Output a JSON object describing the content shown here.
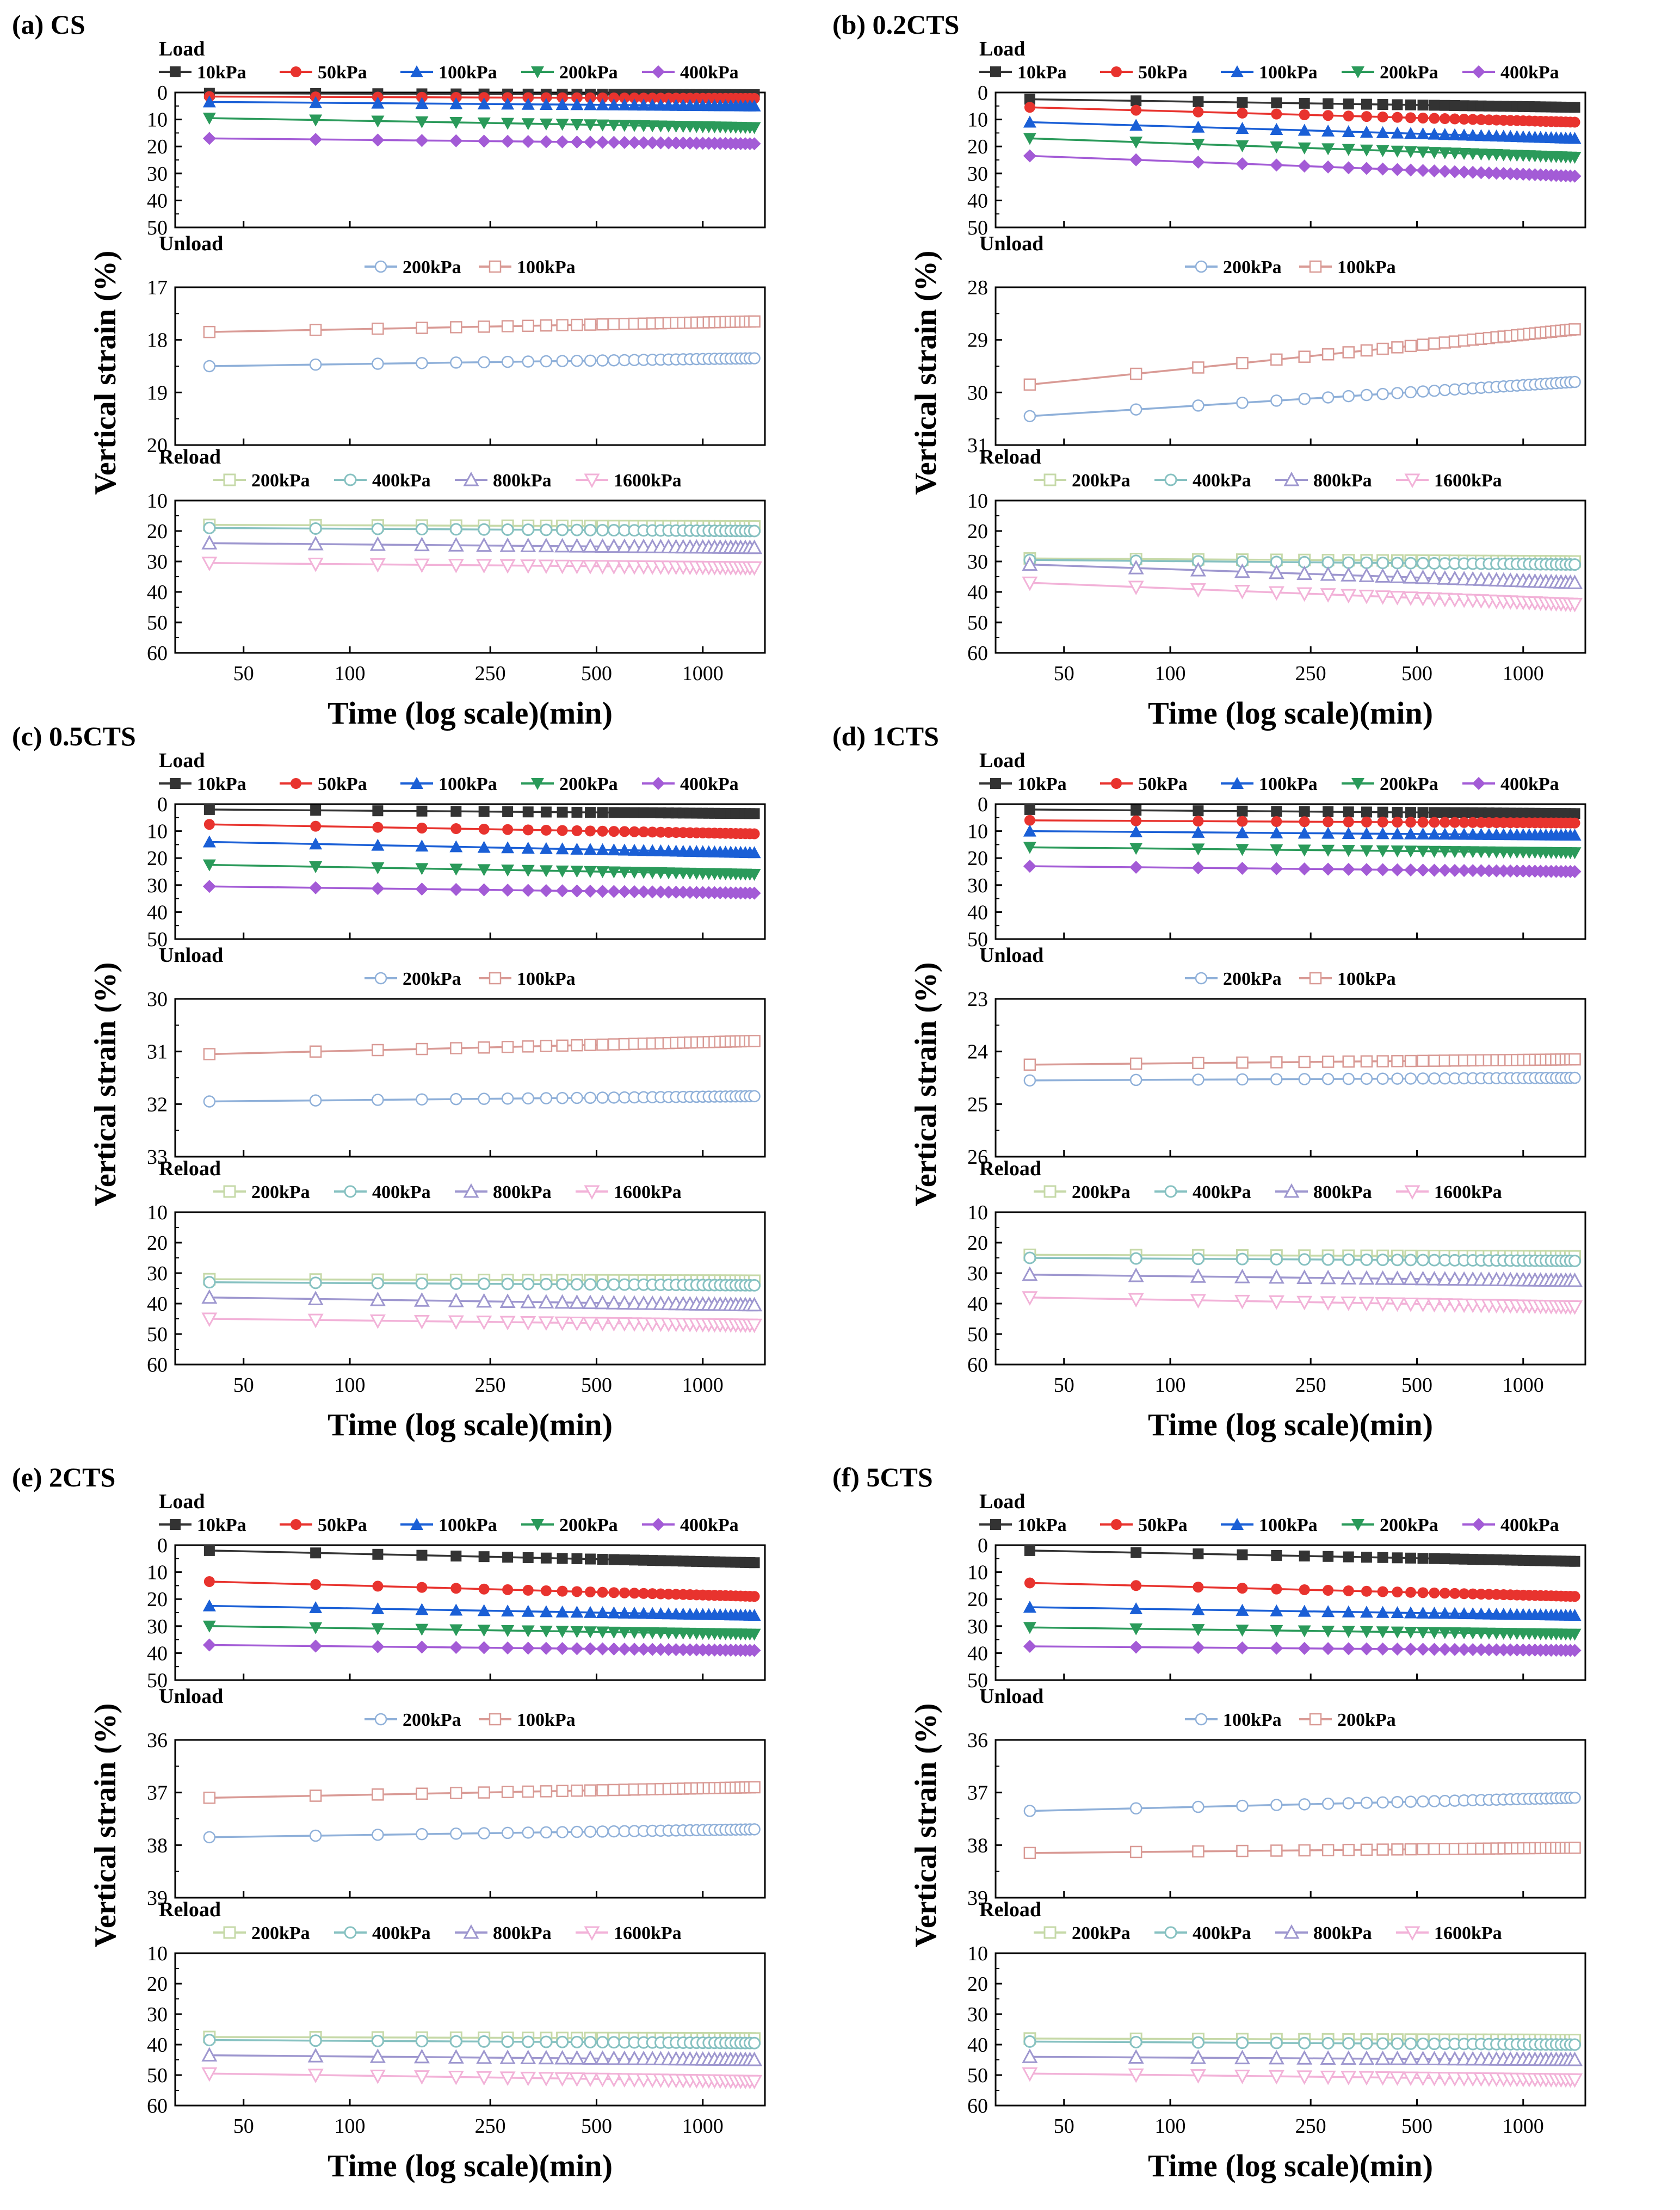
{
  "chart_data": [
    {
      "type": "line",
      "panel_label": "(a) CS",
      "ylabel": "Vertical strain (%)",
      "xlabel": "Time (log scale)(min)",
      "x_ticks": [
        50,
        100,
        250,
        500,
        1000
      ],
      "xlim": [
        32,
        1500
      ],
      "x_scale": "log",
      "subplots": [
        {
          "name": "Load",
          "ylim": [
            0,
            50
          ],
          "y_ticks": [
            0,
            10,
            20,
            30,
            40,
            50
          ],
          "series": [
            {
              "name": "10kPa",
              "color": "#333333",
              "marker": "square",
              "y_start": 0.3,
              "y_end": 0.8
            },
            {
              "name": "50kPa",
              "color": "#e8332e",
              "marker": "circle",
              "y_start": 1.5,
              "y_end": 2.2
            },
            {
              "name": "100kPa",
              "color": "#1a5fd6",
              "marker": "triangle-up",
              "y_start": 3.5,
              "y_end": 5
            },
            {
              "name": "200kPa",
              "color": "#2a9a5a",
              "marker": "triangle-down",
              "y_start": 9.5,
              "y_end": 13
            },
            {
              "name": "400kPa",
              "color": "#a35bd6",
              "marker": "diamond",
              "y_start": 17,
              "y_end": 19
            }
          ]
        },
        {
          "name": "Unload",
          "ylim": [
            17,
            20
          ],
          "y_ticks": [
            17,
            18,
            19,
            20
          ],
          "series": [
            {
              "name": "200kPa",
              "color": "#8fb0d9",
              "marker": "circle-open",
              "y_start": 18.5,
              "y_end": 18.35
            },
            {
              "name": "100kPa",
              "color": "#d99a95",
              "marker": "square-open",
              "y_start": 17.85,
              "y_end": 17.65
            }
          ]
        },
        {
          "name": "Reload",
          "ylim": [
            10,
            60
          ],
          "y_ticks": [
            10,
            20,
            30,
            40,
            50,
            60
          ],
          "series": [
            {
              "name": "200kPa",
              "color": "#c6d9a8",
              "marker": "square-half",
              "y_start": 18,
              "y_end": 18.5
            },
            {
              "name": "400kPa",
              "color": "#86c1c1",
              "marker": "circle-half",
              "y_start": 19,
              "y_end": 20
            },
            {
              "name": "800kPa",
              "color": "#9e97cf",
              "marker": "triangle-half",
              "y_start": 24,
              "y_end": 25.5
            },
            {
              "name": "1600kPa",
              "color": "#f2b2d8",
              "marker": "triangle-down-half",
              "y_start": 30.5,
              "y_end": 32
            }
          ]
        }
      ]
    },
    {
      "type": "line",
      "panel_label": "(b) 0.2CTS",
      "ylabel": "Vertical strain (%)",
      "xlabel": "Time (log scale)(min)",
      "x_ticks": [
        50,
        100,
        250,
        500,
        1000
      ],
      "xlim": [
        32,
        1500
      ],
      "x_scale": "log",
      "subplots": [
        {
          "name": "Load",
          "ylim": [
            0,
            50
          ],
          "y_ticks": [
            0,
            10,
            20,
            30,
            40,
            50
          ],
          "series": [
            {
              "name": "10kPa",
              "color": "#333333",
              "marker": "square",
              "y_start": 2.5,
              "y_end": 5.5
            },
            {
              "name": "50kPa",
              "color": "#e8332e",
              "marker": "circle",
              "y_start": 5.5,
              "y_end": 11
            },
            {
              "name": "100kPa",
              "color": "#1a5fd6",
              "marker": "triangle-up",
              "y_start": 11,
              "y_end": 17
            },
            {
              "name": "200kPa",
              "color": "#2a9a5a",
              "marker": "triangle-down",
              "y_start": 17,
              "y_end": 24
            },
            {
              "name": "400kPa",
              "color": "#a35bd6",
              "marker": "diamond",
              "y_start": 23.5,
              "y_end": 31
            }
          ]
        },
        {
          "name": "Unload",
          "ylim": [
            28,
            31
          ],
          "y_ticks": [
            28,
            29,
            30,
            31
          ],
          "series": [
            {
              "name": "200kPa",
              "color": "#8fb0d9",
              "marker": "circle-open",
              "y_start": 30.45,
              "y_end": 29.8
            },
            {
              "name": "100kPa",
              "color": "#d99a95",
              "marker": "square-open",
              "y_start": 29.85,
              "y_end": 28.8
            }
          ]
        },
        {
          "name": "Reload",
          "ylim": [
            10,
            60
          ],
          "y_ticks": [
            10,
            20,
            30,
            40,
            50,
            60
          ],
          "series": [
            {
              "name": "200kPa",
              "color": "#c6d9a8",
              "marker": "square-half",
              "y_start": 29,
              "y_end": 30
            },
            {
              "name": "400kPa",
              "color": "#86c1c1",
              "marker": "circle-half",
              "y_start": 29.5,
              "y_end": 31
            },
            {
              "name": "800kPa",
              "color": "#9e97cf",
              "marker": "triangle-half",
              "y_start": 31,
              "y_end": 37
            },
            {
              "name": "1600kPa",
              "color": "#f2b2d8",
              "marker": "triangle-down-half",
              "y_start": 37,
              "y_end": 44
            }
          ]
        }
      ]
    },
    {
      "type": "line",
      "panel_label": "(c) 0.5CTS",
      "ylabel": "Vertical strain (%)",
      "xlabel": "Time (log scale)(min)",
      "x_ticks": [
        50,
        100,
        250,
        500,
        1000
      ],
      "xlim": [
        32,
        1500
      ],
      "x_scale": "log",
      "subplots": [
        {
          "name": "Load",
          "ylim": [
            0,
            50
          ],
          "y_ticks": [
            0,
            10,
            20,
            30,
            40,
            50
          ],
          "series": [
            {
              "name": "10kPa",
              "color": "#333333",
              "marker": "square",
              "y_start": 2,
              "y_end": 3.5
            },
            {
              "name": "50kPa",
              "color": "#e8332e",
              "marker": "circle",
              "y_start": 7.5,
              "y_end": 11
            },
            {
              "name": "100kPa",
              "color": "#1a5fd6",
              "marker": "triangle-up",
              "y_start": 14,
              "y_end": 18
            },
            {
              "name": "200kPa",
              "color": "#2a9a5a",
              "marker": "triangle-down",
              "y_start": 22.5,
              "y_end": 26
            },
            {
              "name": "400kPa",
              "color": "#a35bd6",
              "marker": "diamond",
              "y_start": 30.5,
              "y_end": 33
            }
          ]
        },
        {
          "name": "Unload",
          "ylim": [
            30,
            33
          ],
          "y_ticks": [
            30,
            31,
            32,
            33
          ],
          "series": [
            {
              "name": "200kPa",
              "color": "#8fb0d9",
              "marker": "circle-open",
              "y_start": 31.95,
              "y_end": 31.85
            },
            {
              "name": "100kPa",
              "color": "#d99a95",
              "marker": "square-open",
              "y_start": 31.05,
              "y_end": 30.8
            }
          ]
        },
        {
          "name": "Reload",
          "ylim": [
            10,
            60
          ],
          "y_ticks": [
            10,
            20,
            30,
            40,
            50,
            60
          ],
          "series": [
            {
              "name": "200kPa",
              "color": "#c6d9a8",
              "marker": "square-half",
              "y_start": 32,
              "y_end": 32.5
            },
            {
              "name": "400kPa",
              "color": "#86c1c1",
              "marker": "circle-half",
              "y_start": 33,
              "y_end": 34
            },
            {
              "name": "800kPa",
              "color": "#9e97cf",
              "marker": "triangle-half",
              "y_start": 38,
              "y_end": 40.5
            },
            {
              "name": "1600kPa",
              "color": "#f2b2d8",
              "marker": "triangle-down-half",
              "y_start": 45,
              "y_end": 47
            }
          ]
        }
      ]
    },
    {
      "type": "line",
      "panel_label": "(d) 1CTS",
      "ylabel": "Vertical strain (%)",
      "xlabel": "Time (log scale)(min)",
      "x_ticks": [
        50,
        100,
        250,
        500,
        1000
      ],
      "xlim": [
        32,
        1500
      ],
      "x_scale": "log",
      "subplots": [
        {
          "name": "Load",
          "ylim": [
            0,
            50
          ],
          "y_ticks": [
            0,
            10,
            20,
            30,
            40,
            50
          ],
          "series": [
            {
              "name": "10kPa",
              "color": "#333333",
              "marker": "square",
              "y_start": 2,
              "y_end": 3.5
            },
            {
              "name": "50kPa",
              "color": "#e8332e",
              "marker": "circle",
              "y_start": 6,
              "y_end": 7
            },
            {
              "name": "100kPa",
              "color": "#1a5fd6",
              "marker": "triangle-up",
              "y_start": 10,
              "y_end": 11.5
            },
            {
              "name": "200kPa",
              "color": "#2a9a5a",
              "marker": "triangle-down",
              "y_start": 16,
              "y_end": 18
            },
            {
              "name": "400kPa",
              "color": "#a35bd6",
              "marker": "diamond",
              "y_start": 23,
              "y_end": 25
            }
          ]
        },
        {
          "name": "Unload",
          "ylim": [
            23,
            26
          ],
          "y_ticks": [
            23,
            24,
            25,
            26
          ],
          "series": [
            {
              "name": "200kPa",
              "color": "#8fb0d9",
              "marker": "circle-open",
              "y_start": 24.55,
              "y_end": 24.5
            },
            {
              "name": "100kPa",
              "color": "#d99a95",
              "marker": "square-open",
              "y_start": 24.25,
              "y_end": 24.15
            }
          ]
        },
        {
          "name": "Reload",
          "ylim": [
            10,
            60
          ],
          "y_ticks": [
            10,
            20,
            30,
            40,
            50,
            60
          ],
          "series": [
            {
              "name": "200kPa",
              "color": "#c6d9a8",
              "marker": "square-half",
              "y_start": 24,
              "y_end": 24.5
            },
            {
              "name": "400kPa",
              "color": "#86c1c1",
              "marker": "circle-half",
              "y_start": 25,
              "y_end": 26
            },
            {
              "name": "800kPa",
              "color": "#9e97cf",
              "marker": "triangle-half",
              "y_start": 30.5,
              "y_end": 32.5
            },
            {
              "name": "1600kPa",
              "color": "#f2b2d8",
              "marker": "triangle-down-half",
              "y_start": 38,
              "y_end": 41
            }
          ]
        }
      ]
    },
    {
      "type": "line",
      "panel_label": "(e) 2CTS",
      "ylabel": "Vertical strain (%)",
      "xlabel": "Time (log scale)(min)",
      "x_ticks": [
        50,
        100,
        250,
        500,
        1000
      ],
      "xlim": [
        32,
        1500
      ],
      "x_scale": "log",
      "subplots": [
        {
          "name": "Load",
          "ylim": [
            0,
            50
          ],
          "y_ticks": [
            0,
            10,
            20,
            30,
            40,
            50
          ],
          "series": [
            {
              "name": "10kPa",
              "color": "#333333",
              "marker": "square",
              "y_start": 2,
              "y_end": 6.5
            },
            {
              "name": "50kPa",
              "color": "#e8332e",
              "marker": "circle",
              "y_start": 13.5,
              "y_end": 19
            },
            {
              "name": "100kPa",
              "color": "#1a5fd6",
              "marker": "triangle-up",
              "y_start": 22.5,
              "y_end": 26
            },
            {
              "name": "200kPa",
              "color": "#2a9a5a",
              "marker": "triangle-down",
              "y_start": 30,
              "y_end": 33
            },
            {
              "name": "400kPa",
              "color": "#a35bd6",
              "marker": "diamond",
              "y_start": 37,
              "y_end": 39
            }
          ]
        },
        {
          "name": "Unload",
          "ylim": [
            36,
            39
          ],
          "y_ticks": [
            36,
            37,
            38,
            39
          ],
          "series": [
            {
              "name": "200kPa",
              "color": "#8fb0d9",
              "marker": "circle-open",
              "y_start": 37.85,
              "y_end": 37.7
            },
            {
              "name": "100kPa",
              "color": "#d99a95",
              "marker": "square-open",
              "y_start": 37.1,
              "y_end": 36.9
            }
          ]
        },
        {
          "name": "Reload",
          "ylim": [
            10,
            60
          ],
          "y_ticks": [
            10,
            20,
            30,
            40,
            50,
            60
          ],
          "series": [
            {
              "name": "200kPa",
              "color": "#c6d9a8",
              "marker": "square-half",
              "y_start": 37.5,
              "y_end": 38
            },
            {
              "name": "400kPa",
              "color": "#86c1c1",
              "marker": "circle-half",
              "y_start": 38.5,
              "y_end": 39.5
            },
            {
              "name": "800kPa",
              "color": "#9e97cf",
              "marker": "triangle-half",
              "y_start": 43.5,
              "y_end": 45
            },
            {
              "name": "1600kPa",
              "color": "#f2b2d8",
              "marker": "triangle-down-half",
              "y_start": 49.5,
              "y_end": 52
            }
          ]
        }
      ]
    },
    {
      "type": "line",
      "panel_label": "(f) 5CTS",
      "ylabel": "Vertical strain (%)",
      "xlabel": "Time (log scale)(min)",
      "x_ticks": [
        50,
        100,
        250,
        500,
        1000
      ],
      "xlim": [
        32,
        1500
      ],
      "x_scale": "log",
      "subplots": [
        {
          "name": "Load",
          "ylim": [
            0,
            50
          ],
          "y_ticks": [
            0,
            10,
            20,
            30,
            40,
            50
          ],
          "series": [
            {
              "name": "10kPa",
              "color": "#333333",
              "marker": "square",
              "y_start": 2,
              "y_end": 6
            },
            {
              "name": "50kPa",
              "color": "#e8332e",
              "marker": "circle",
              "y_start": 14,
              "y_end": 19
            },
            {
              "name": "100kPa",
              "color": "#1a5fd6",
              "marker": "triangle-up",
              "y_start": 23,
              "y_end": 26
            },
            {
              "name": "200kPa",
              "color": "#2a9a5a",
              "marker": "triangle-down",
              "y_start": 30.5,
              "y_end": 33
            },
            {
              "name": "400kPa",
              "color": "#a35bd6",
              "marker": "diamond",
              "y_start": 37.5,
              "y_end": 39
            }
          ]
        },
        {
          "name": "Unload",
          "ylim": [
            36,
            39
          ],
          "y_ticks": [
            36,
            37,
            38,
            39
          ],
          "series": [
            {
              "name": "100kPa",
              "color": "#8fb0d9",
              "marker": "circle-open",
              "y_start": 37.35,
              "y_end": 37.1
            },
            {
              "name": "200kPa",
              "color": "#d99a95",
              "marker": "square-open",
              "y_start": 38.15,
              "y_end": 38.05
            }
          ]
        },
        {
          "name": "Reload",
          "ylim": [
            10,
            60
          ],
          "y_ticks": [
            10,
            20,
            30,
            40,
            50,
            60
          ],
          "series": [
            {
              "name": "200kPa",
              "color": "#c6d9a8",
              "marker": "square-half",
              "y_start": 38,
              "y_end": 38.5
            },
            {
              "name": "400kPa",
              "color": "#86c1c1",
              "marker": "circle-half",
              "y_start": 39,
              "y_end": 40
            },
            {
              "name": "800kPa",
              "color": "#9e97cf",
              "marker": "triangle-half",
              "y_start": 44,
              "y_end": 45
            },
            {
              "name": "1600kPa",
              "color": "#f2b2d8",
              "marker": "triangle-down-half",
              "y_start": 49.5,
              "y_end": 51.5
            }
          ]
        }
      ]
    }
  ]
}
